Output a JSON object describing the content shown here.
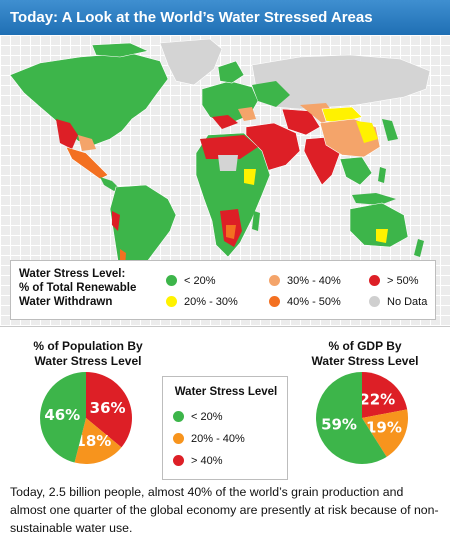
{
  "title": "Today: A Look at the World’s Water Stressed Areas",
  "map_legend": {
    "title_lines": [
      "Water Stress Level:",
      "% of Total Renewable",
      "Water Withdrawn"
    ],
    "items": [
      {
        "label": "< 20%",
        "color": "#3db54a"
      },
      {
        "label": "20% - 30%",
        "color": "#fff200"
      },
      {
        "label": "30% - 40%",
        "color": "#f4a46a"
      },
      {
        "label": "40% - 50%",
        "color": "#f37021"
      },
      {
        "label": "> 50%",
        "color": "#dd1f26"
      },
      {
        "label": "No Data",
        "color": "#cfcfcf"
      }
    ]
  },
  "pie_population": {
    "title_lines": [
      "% of Population By",
      "Water Stress Level"
    ]
  },
  "pie_gdp": {
    "title_lines": [
      "% of GDP By",
      "Water Stress Level"
    ]
  },
  "center_legend": {
    "title": "Water Stress Level",
    "items": [
      {
        "label": "< 20%",
        "color": "#3db54a"
      },
      {
        "label": "20% - 40%",
        "color": "#f7941d"
      },
      {
        "label": "> 40%",
        "color": "#dd1f26"
      }
    ]
  },
  "chart_data": [
    {
      "type": "pie",
      "title": "% of Population By Water Stress Level",
      "categories": [
        "< 20%",
        "20% - 40%",
        "> 40%"
      ],
      "values": [
        46,
        18,
        36
      ],
      "labels": [
        "46%",
        "18%",
        "36%"
      ],
      "colors": [
        "#3db54a",
        "#f7941d",
        "#dd1f26"
      ]
    },
    {
      "type": "pie",
      "title": "% of GDP By Water Stress Level",
      "categories": [
        "< 20%",
        "20% - 40%",
        "> 40%"
      ],
      "values": [
        59,
        19,
        22
      ],
      "labels": [
        "59%",
        "19%",
        "22%"
      ],
      "colors": [
        "#3db54a",
        "#f7941d",
        "#dd1f26"
      ]
    }
  ],
  "footer": "Today, 2.5 billion people, almost 40% of the world’s grain production and almost one quarter of the global economy are presently at risk because of non-sustainable water use."
}
